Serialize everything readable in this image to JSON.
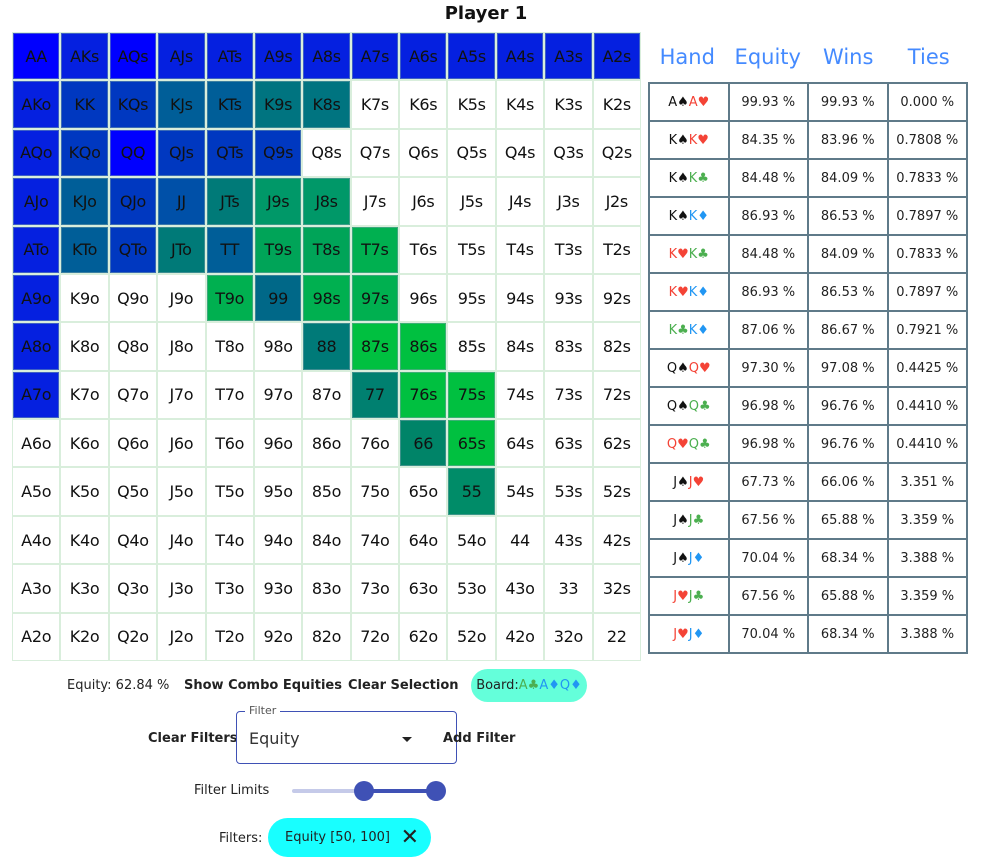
{
  "title": "Player 1",
  "grid": [
    [
      "AA",
      "AKs",
      "AQs",
      "AJs",
      "ATs",
      "A9s",
      "A8s",
      "A7s",
      "A6s",
      "A5s",
      "A4s",
      "A3s",
      "A2s"
    ],
    [
      "AKo",
      "KK",
      "KQs",
      "KJs",
      "KTs",
      "K9s",
      "K8s",
      "K7s",
      "K6s",
      "K5s",
      "K4s",
      "K3s",
      "K2s"
    ],
    [
      "AQo",
      "KQo",
      "QQ",
      "QJs",
      "QTs",
      "Q9s",
      "Q8s",
      "Q7s",
      "Q6s",
      "Q5s",
      "Q4s",
      "Q3s",
      "Q2s"
    ],
    [
      "AJo",
      "KJo",
      "QJo",
      "JJ",
      "JTs",
      "J9s",
      "J8s",
      "J7s",
      "J6s",
      "J5s",
      "J4s",
      "J3s",
      "J2s"
    ],
    [
      "ATo",
      "KTo",
      "QTo",
      "JTo",
      "TT",
      "T9s",
      "T8s",
      "T7s",
      "T6s",
      "T5s",
      "T4s",
      "T3s",
      "T2s"
    ],
    [
      "A9o",
      "K9o",
      "Q9o",
      "J9o",
      "T9o",
      "99",
      "98s",
      "97s",
      "96s",
      "95s",
      "94s",
      "93s",
      "92s"
    ],
    [
      "A8o",
      "K8o",
      "Q8o",
      "J8o",
      "T8o",
      "98o",
      "88",
      "87s",
      "86s",
      "85s",
      "84s",
      "83s",
      "82s"
    ],
    [
      "A7o",
      "K7o",
      "Q7o",
      "J7o",
      "T7o",
      "97o",
      "87o",
      "77",
      "76s",
      "75s",
      "74s",
      "73s",
      "72s"
    ],
    [
      "A6o",
      "K6o",
      "Q6o",
      "J6o",
      "T6o",
      "96o",
      "86o",
      "76o",
      "66",
      "65s",
      "64s",
      "63s",
      "62s"
    ],
    [
      "A5o",
      "K5o",
      "Q5o",
      "J5o",
      "T5o",
      "95o",
      "85o",
      "75o",
      "65o",
      "55",
      "54s",
      "53s",
      "52s"
    ],
    [
      "A4o",
      "K4o",
      "Q4o",
      "J4o",
      "T4o",
      "94o",
      "84o",
      "74o",
      "64o",
      "54o",
      "44",
      "43s",
      "42s"
    ],
    [
      "A3o",
      "K3o",
      "Q3o",
      "J3o",
      "T3o",
      "93o",
      "83o",
      "73o",
      "63o",
      "53o",
      "43o",
      "33",
      "32s"
    ],
    [
      "A2o",
      "K2o",
      "Q2o",
      "J2o",
      "T2o",
      "92o",
      "82o",
      "72o",
      "62o",
      "52o",
      "42o",
      "32o",
      "22"
    ]
  ],
  "cell_colors": {
    "AA": "#0000ff",
    "AQs": "#0000ff",
    "QQ": "#0000ff",
    "AKs": "#0520e0",
    "AJs": "#0520e0",
    "ATs": "#0520e0",
    "A9s": "#0520e0",
    "A8s": "#0520e0",
    "A7s": "#0520e0",
    "A6s": "#0520e0",
    "A5s": "#0520e0",
    "A4s": "#0520e0",
    "A3s": "#0520e0",
    "A2s": "#0520e0",
    "AKo": "#0520e0",
    "AQo": "#0520e0",
    "AJo": "#0520e0",
    "ATo": "#0520e0",
    "A9o": "#0520e0",
    "A8o": "#0520e0",
    "A7o": "#0520e0",
    "KK": "#0038c0",
    "KQs": "#0038c0",
    "KQo": "#0038c0",
    "QJs": "#0038c0",
    "QTs": "#0038c0",
    "Q9s": "#0038c0",
    "QJo": "#0038c0",
    "QTo": "#0038c0",
    "JJ": "#0050a8",
    "KJs": "#005e98",
    "KTs": "#005e98",
    "KJo": "#005e98",
    "KTo": "#005e98",
    "TT": "#005e98",
    "99": "#006888",
    "K9s": "#007480",
    "K8s": "#007480",
    "JTs": "#007a78",
    "JTo": "#007a78",
    "88": "#007a78",
    "77": "#008070",
    "66": "#008468",
    "55": "#008c68",
    "J9s": "#009868",
    "J8s": "#009868",
    "T9s": "#00a458",
    "T8s": "#00a458",
    "T7s": "#00b050",
    "T9o": "#00b050",
    "98s": "#00b050",
    "97s": "#00b050",
    "87s": "#00c040",
    "86s": "#00c040",
    "76s": "#00c040",
    "75s": "#00c040",
    "65s": "#00c040"
  },
  "table": {
    "headers": [
      "Hand",
      "Equity",
      "Wins",
      "Ties"
    ],
    "rows": [
      {
        "hand": [
          [
            "A",
            "spade"
          ],
          [
            "A",
            "heart"
          ]
        ],
        "equity": "99.93 %",
        "wins": "99.93 %",
        "ties": "0.000 %"
      },
      {
        "hand": [
          [
            "K",
            "spade"
          ],
          [
            "K",
            "heart"
          ]
        ],
        "equity": "84.35 %",
        "wins": "83.96 %",
        "ties": "0.7808 %"
      },
      {
        "hand": [
          [
            "K",
            "spade"
          ],
          [
            "K",
            "club"
          ]
        ],
        "equity": "84.48 %",
        "wins": "84.09 %",
        "ties": "0.7833 %"
      },
      {
        "hand": [
          [
            "K",
            "spade"
          ],
          [
            "K",
            "diamond"
          ]
        ],
        "equity": "86.93 %",
        "wins": "86.53 %",
        "ties": "0.7897 %"
      },
      {
        "hand": [
          [
            "K",
            "heart"
          ],
          [
            "K",
            "club"
          ]
        ],
        "equity": "84.48 %",
        "wins": "84.09 %",
        "ties": "0.7833 %"
      },
      {
        "hand": [
          [
            "K",
            "heart"
          ],
          [
            "K",
            "diamond"
          ]
        ],
        "equity": "86.93 %",
        "wins": "86.53 %",
        "ties": "0.7897 %"
      },
      {
        "hand": [
          [
            "K",
            "club"
          ],
          [
            "K",
            "diamond"
          ]
        ],
        "equity": "87.06 %",
        "wins": "86.67 %",
        "ties": "0.7921 %"
      },
      {
        "hand": [
          [
            "Q",
            "spade"
          ],
          [
            "Q",
            "heart"
          ]
        ],
        "equity": "97.30 %",
        "wins": "97.08 %",
        "ties": "0.4425 %"
      },
      {
        "hand": [
          [
            "Q",
            "spade"
          ],
          [
            "Q",
            "club"
          ]
        ],
        "equity": "96.98 %",
        "wins": "96.76 %",
        "ties": "0.4410 %"
      },
      {
        "hand": [
          [
            "Q",
            "heart"
          ],
          [
            "Q",
            "club"
          ]
        ],
        "equity": "96.98 %",
        "wins": "96.76 %",
        "ties": "0.4410 %"
      },
      {
        "hand": [
          [
            "J",
            "spade"
          ],
          [
            "J",
            "heart"
          ]
        ],
        "equity": "67.73 %",
        "wins": "66.06 %",
        "ties": "3.351 %"
      },
      {
        "hand": [
          [
            "J",
            "spade"
          ],
          [
            "J",
            "club"
          ]
        ],
        "equity": "67.56 %",
        "wins": "65.88 %",
        "ties": "3.359 %"
      },
      {
        "hand": [
          [
            "J",
            "spade"
          ],
          [
            "J",
            "diamond"
          ]
        ],
        "equity": "70.04 %",
        "wins": "68.34 %",
        "ties": "3.388 %"
      },
      {
        "hand": [
          [
            "J",
            "heart"
          ],
          [
            "J",
            "club"
          ]
        ],
        "equity": "67.56 %",
        "wins": "65.88 %",
        "ties": "3.359 %"
      },
      {
        "hand": [
          [
            "J",
            "heart"
          ],
          [
            "J",
            "diamond"
          ]
        ],
        "equity": "70.04 %",
        "wins": "68.34 %",
        "ties": "3.388 %"
      }
    ]
  },
  "suit_glyphs": {
    "spade": "♠",
    "heart": "♥",
    "club": "♣",
    "diamond": "♦"
  },
  "controls": {
    "equity_label": "Equity: 62.84 %",
    "show_combo": "Show Combo Equities",
    "clear_selection": "Clear Selection",
    "board_label": "Board: ",
    "board_cards": [
      [
        "A",
        "club"
      ],
      [
        "A",
        "diamond"
      ],
      [
        "Q",
        "diamond"
      ]
    ],
    "clear_filters": "Clear Filters",
    "filter_label": "Filter",
    "filter_value": "Equity",
    "add_filter": "Add Filter",
    "filter_limits_label": "Filter Limits",
    "filter_limits": {
      "min": 0,
      "max": 100,
      "low": 50,
      "high": 100
    },
    "filters_label": "Filters:",
    "active_filter": "Equity [50, 100]"
  },
  "colors": {
    "accent": "#3f51b5",
    "header": "#448aff",
    "board_chip": "#64ffda",
    "filter_chip": "#18ffff"
  }
}
